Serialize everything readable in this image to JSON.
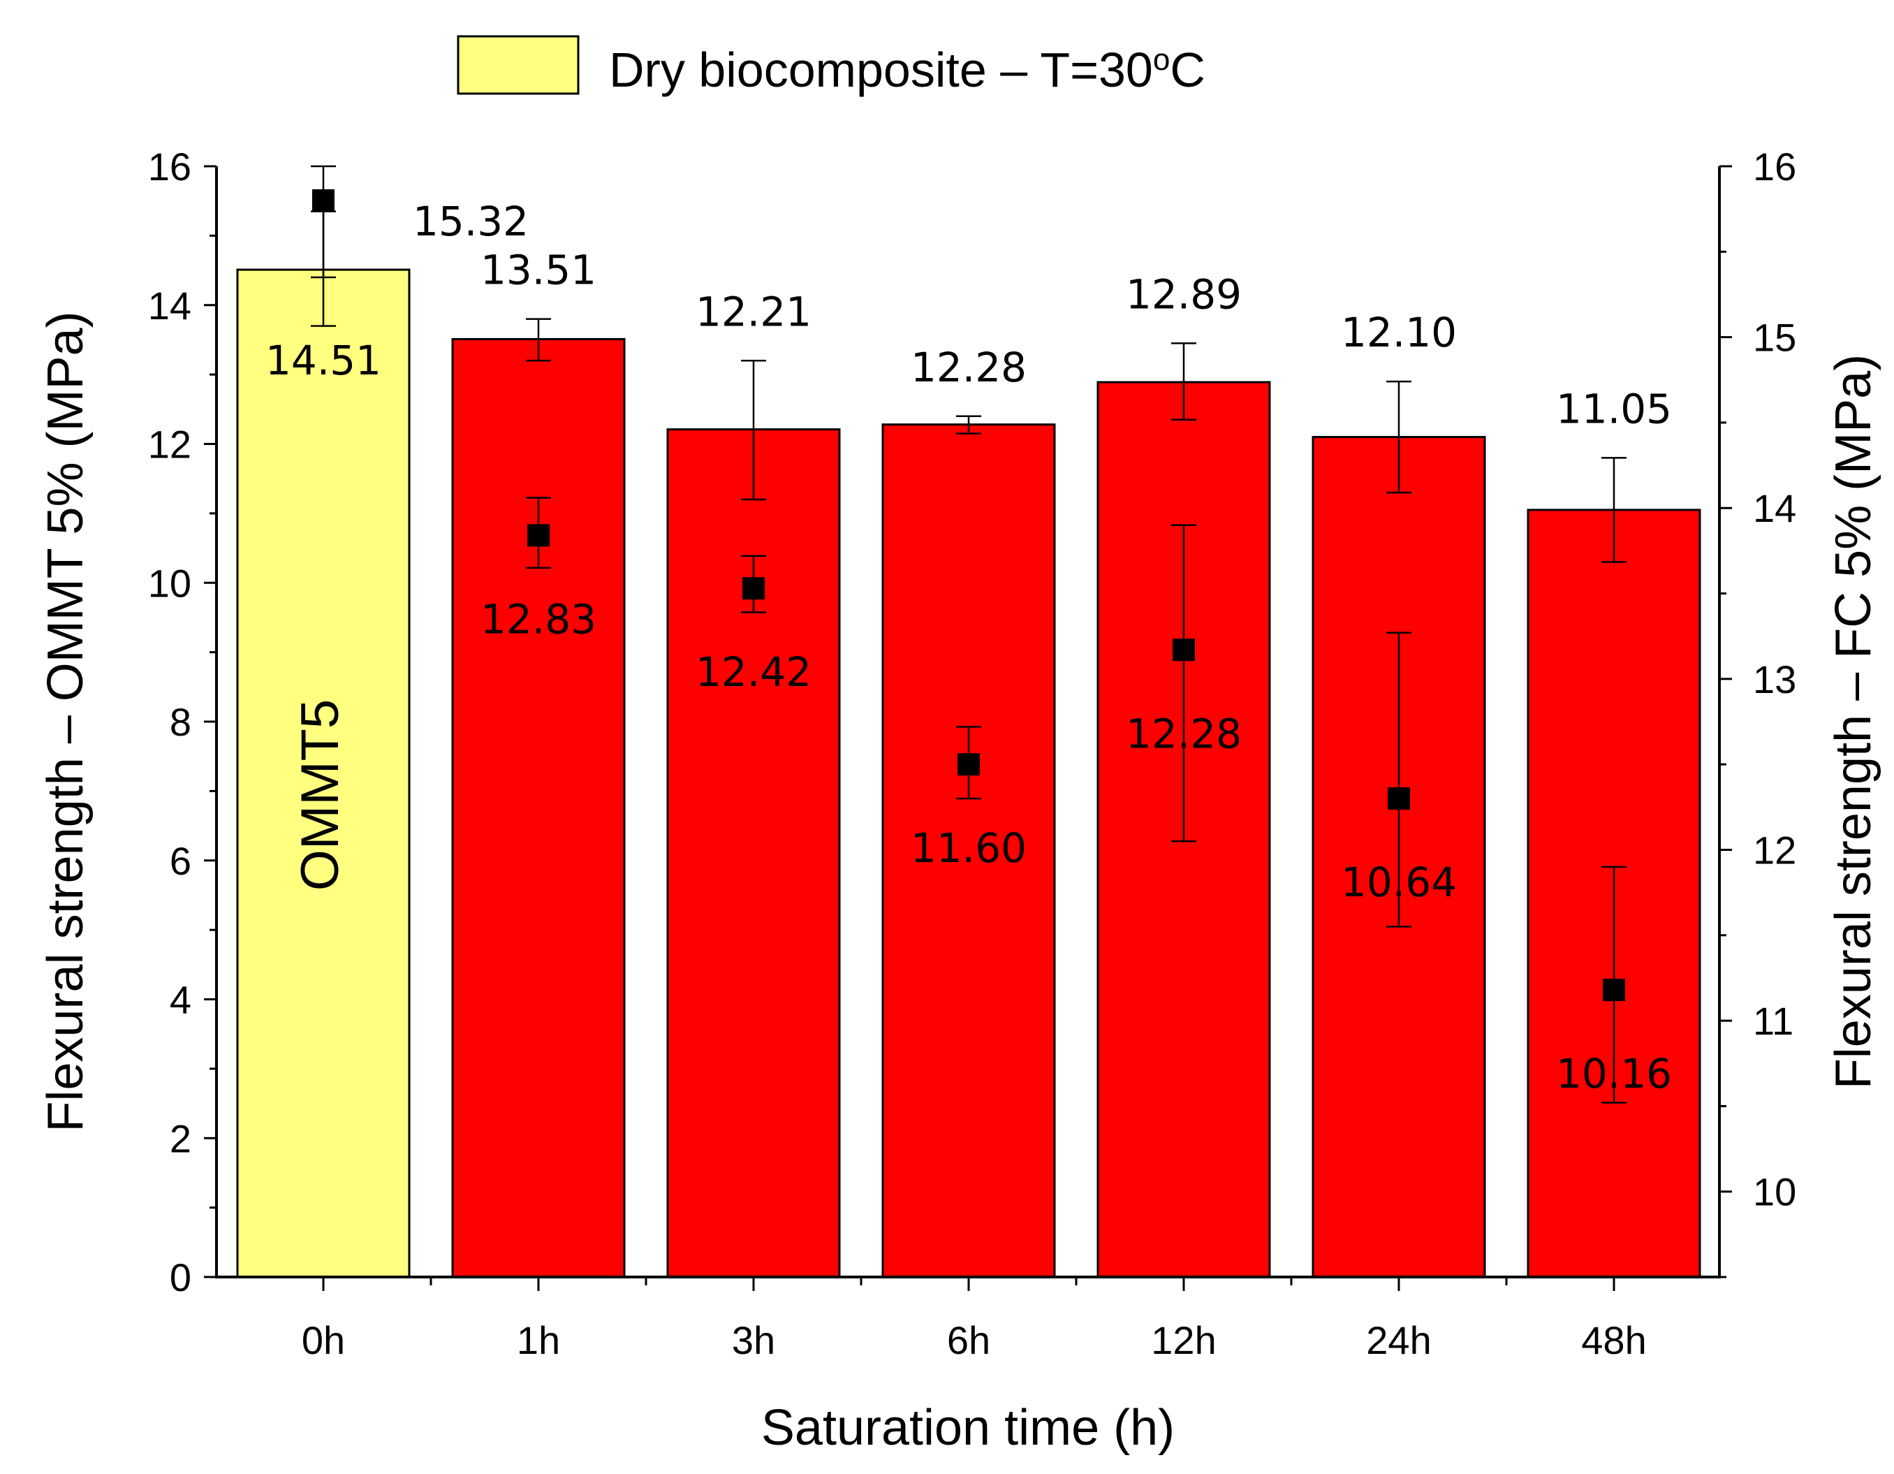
{
  "chart_data": {
    "type": "bar",
    "categories": [
      "0h",
      "1h",
      "3h",
      "6h",
      "12h",
      "24h",
      "48h"
    ],
    "xlabel": "Saturation time (h)",
    "ylabel_left": "Flexural strength – OMMT 5% (MPa)",
    "ylabel_right": "Flexural strength – FC 5% (MPa)",
    "ylim_left": [
      0,
      16
    ],
    "ylim_right": [
      9.5,
      16
    ],
    "left_ticks": [
      "0",
      "2",
      "4",
      "6",
      "8",
      "10",
      "12",
      "14",
      "16"
    ],
    "right_ticks": [
      "10",
      "11",
      "12",
      "13",
      "14",
      "15",
      "16"
    ],
    "legend": {
      "label_main": "Dry biocomposite – T=30",
      "label_sup": "o",
      "label_tail": "C",
      "color": "#ffff80",
      "position": "top-center"
    },
    "bar_inner_label": "OMMT5",
    "grid": false,
    "bars": {
      "values": [
        14.51,
        13.51,
        12.21,
        12.28,
        12.89,
        12.1,
        11.05
      ],
      "labels": [
        "14.51",
        "13.51",
        "12.21",
        "12.28",
        "12.89",
        "12.10",
        "11.05"
      ],
      "err_low": [
        13.7,
        13.2,
        11.2,
        12.15,
        12.35,
        11.3,
        10.3
      ],
      "err_high": [
        15.35,
        13.8,
        13.2,
        12.4,
        13.45,
        12.9,
        11.8
      ],
      "colors": [
        "#ffff80",
        "#ff0000",
        "#ff0000",
        "#ff0000",
        "#ff0000",
        "#ff0000",
        "#ff0000"
      ]
    },
    "points": {
      "axis": "right",
      "values": [
        15.32,
        12.83,
        12.42,
        11.6,
        12.28,
        10.64,
        10.16
      ],
      "y": [
        15.8,
        13.84,
        13.53,
        12.5,
        13.17,
        12.3,
        11.18
      ],
      "labels": [
        "15.32",
        "12.83",
        "12.42",
        "11.60",
        "12.28",
        "10.64",
        "10.16"
      ],
      "err_low": [
        15.35,
        13.65,
        13.39,
        12.3,
        12.05,
        11.55,
        10.52
      ],
      "err_high": [
        16.0,
        14.06,
        13.72,
        12.72,
        13.9,
        13.27,
        11.9
      ],
      "color": "#000000"
    }
  }
}
